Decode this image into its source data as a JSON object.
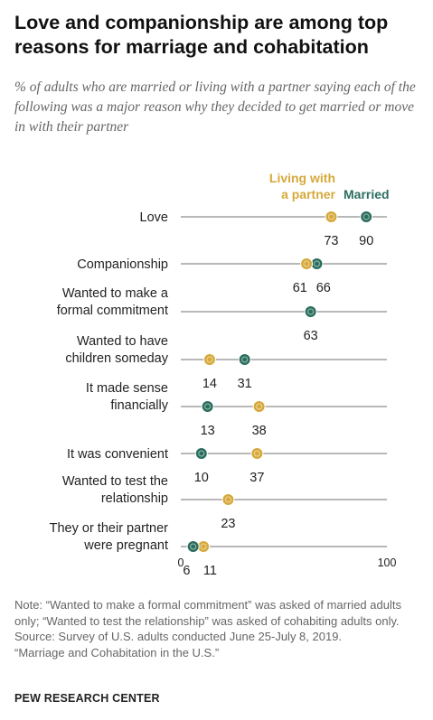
{
  "header": {
    "title": "Love and companionship are among top reasons for marriage and cohabitation",
    "subtitle": "% of adults who are married or living with a partner saying each of the following was a major reason why they decided to get married or move in with their partner"
  },
  "colors": {
    "living": "#d6a93a",
    "married": "#2b6e5e",
    "line": "#707070"
  },
  "chart_data": {
    "type": "dot",
    "xlim": [
      0,
      100
    ],
    "x_ticks": [
      "0",
      "100"
    ],
    "legend": [
      {
        "key": "living",
        "label_lines": [
          "Living with",
          "a partner"
        ]
      },
      {
        "key": "married",
        "label_lines": [
          "Married"
        ]
      }
    ],
    "categories": [
      {
        "label_lines": [
          "Love"
        ],
        "living": 73,
        "married": 90
      },
      {
        "label_lines": [
          "Companionship"
        ],
        "living": 61,
        "married": 66
      },
      {
        "label_lines": [
          "Wanted to make a",
          "formal commitment"
        ],
        "living": null,
        "married": 63
      },
      {
        "label_lines": [
          "Wanted to have",
          "children someday"
        ],
        "living": 14,
        "married": 31
      },
      {
        "label_lines": [
          "It made sense",
          "financially"
        ],
        "living": 38,
        "married": 13
      },
      {
        "label_lines": [
          "It was convenient"
        ],
        "living": 37,
        "married": 10
      },
      {
        "label_lines": [
          "Wanted to test the",
          "relationship"
        ],
        "living": 23,
        "married": null
      },
      {
        "label_lines": [
          "They or their partner",
          "were pregnant"
        ],
        "living": 11,
        "married": 6
      }
    ]
  },
  "footer": {
    "note": "Note: “Wanted to make a formal commitment” was asked of married adults only; “Wanted to test the relationship” was asked of cohabiting adults only.",
    "source": "Source: Survey of U.S. adults conducted June 25-July 8, 2019.",
    "report": "“Marriage and Cohabitation in the U.S.”",
    "brand": "PEW RESEARCH CENTER"
  }
}
